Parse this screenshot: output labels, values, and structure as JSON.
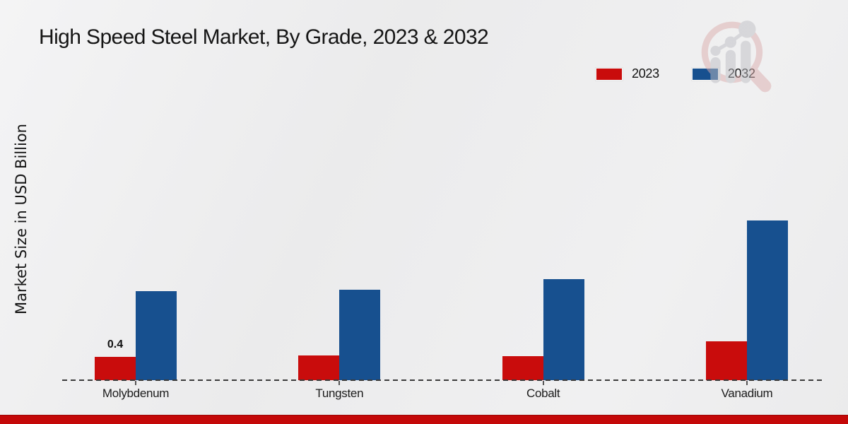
{
  "title": "High Speed Steel Market, By Grade, 2023 & 2032",
  "y_axis_label": "Market Size in USD Billion",
  "legend": {
    "items": [
      {
        "label": "2023",
        "color": "#c90c0c"
      },
      {
        "label": "2032",
        "color": "#17508f"
      }
    ]
  },
  "footer": {
    "brand_bar_color": "#c40808"
  },
  "watermark": {
    "name": "market-research-magnifier-logo"
  },
  "chart_data": {
    "type": "bar",
    "title": "High Speed Steel Market, By Grade, 2023 & 2032",
    "xlabel": "",
    "ylabel": "Market Size in USD Billion",
    "categories": [
      "Molybdenum",
      "Tungsten",
      "Cobalt",
      "Vanadium"
    ],
    "series": [
      {
        "name": "2023",
        "color": "#c90c0c",
        "values": [
          0.4,
          0.42,
          0.41,
          0.67
        ]
      },
      {
        "name": "2032",
        "color": "#17508f",
        "values": [
          1.53,
          1.55,
          1.73,
          2.74
        ]
      }
    ],
    "annotations": [
      {
        "series": "2023",
        "category": "Molybdenum",
        "text": "0.4"
      }
    ],
    "ylim": [
      0,
      3.3
    ],
    "grid": false,
    "y_axis_ticks_visible": false,
    "legend_position": "top-right",
    "baseline_style": "dashed"
  }
}
